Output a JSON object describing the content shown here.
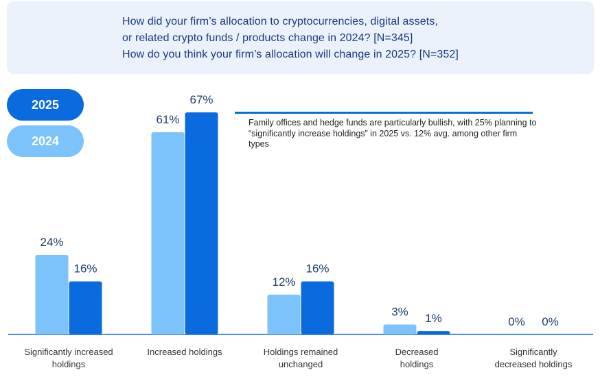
{
  "header": {
    "question_lines": [
      "How did your firm’s allocation to cryptocurrencies, digital assets,",
      "or related crypto funds / products change in 2024? [N=345]",
      "How do you think your firm’s allocation will change in 2025? [N=352]"
    ]
  },
  "legend": {
    "items": [
      {
        "label": "2025",
        "color": "#0a6bdf"
      },
      {
        "label": "2024",
        "color": "#7cc2fb"
      }
    ]
  },
  "note": {
    "text": "Family offices and hedge funds are particularly bullish, with 25% planning to “significantly increase holdings” in 2025 vs. 12% avg. among other firm types"
  },
  "chart_data": {
    "type": "bar",
    "categories": [
      "Significantly increased holdings",
      "Increased holdings",
      "Holdings remained unchanged",
      "Decreased holdings",
      "Significantly decreased holdings"
    ],
    "category_label_lines": [
      [
        "Significantly increased",
        "holdings"
      ],
      [
        "Increased holdings"
      ],
      [
        "Holdings remained",
        "unchanged"
      ],
      [
        "Decreased",
        "holdings"
      ],
      [
        "Significantly",
        "decreased holdings"
      ]
    ],
    "series": [
      {
        "name": "2024",
        "color": "#7cc2fb",
        "values": [
          24,
          61,
          12,
          3,
          0
        ]
      },
      {
        "name": "2025",
        "color": "#0a6bdf",
        "values": [
          16,
          67,
          16,
          1,
          0
        ]
      }
    ],
    "value_suffix": "%",
    "ylim": [
      0,
      67
    ],
    "grid": false,
    "legend_position": "top-left"
  }
}
